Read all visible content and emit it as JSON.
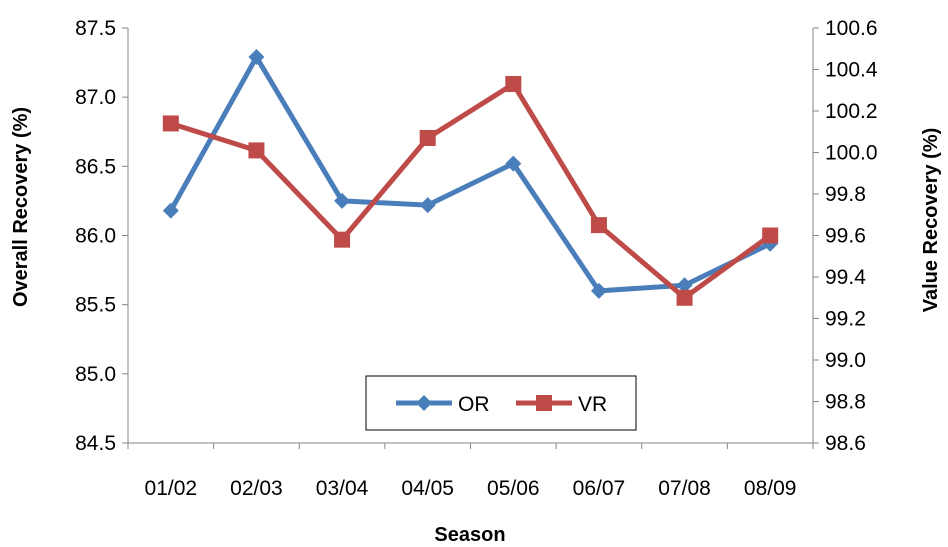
{
  "chart_data": {
    "type": "line",
    "categories": [
      "01/02",
      "02/03",
      "03/04",
      "04/05",
      "05/06",
      "06/07",
      "07/08",
      "08/09"
    ],
    "xlabel": "Season",
    "ylabel": "Overall Recovery (%)",
    "y2label": "Value Recovery (%)",
    "ylim": [
      84.5,
      87.5
    ],
    "y2lim": [
      98.6,
      100.6
    ],
    "yticks": [
      "84.5",
      "85.0",
      "85.5",
      "86.0",
      "86.5",
      "87.0",
      "87.5"
    ],
    "y2ticks": [
      "98.6",
      "98.8",
      "99.0",
      "99.2",
      "99.4",
      "99.6",
      "99.8",
      "100.0",
      "100.2",
      "100.4",
      "100.6"
    ],
    "grid": false,
    "legend_position": "bottom-center",
    "series": [
      {
        "name": "OR",
        "axis": "left",
        "marker": "diamond",
        "color": "#4a7ebb",
        "values": [
          86.18,
          87.29,
          86.25,
          86.22,
          86.52,
          85.6,
          85.64,
          85.94
        ]
      },
      {
        "name": "VR",
        "axis": "right",
        "marker": "square",
        "color": "#be4b48",
        "values": [
          100.14,
          100.01,
          99.58,
          100.07,
          100.33,
          99.65,
          99.3,
          99.6
        ]
      }
    ]
  }
}
